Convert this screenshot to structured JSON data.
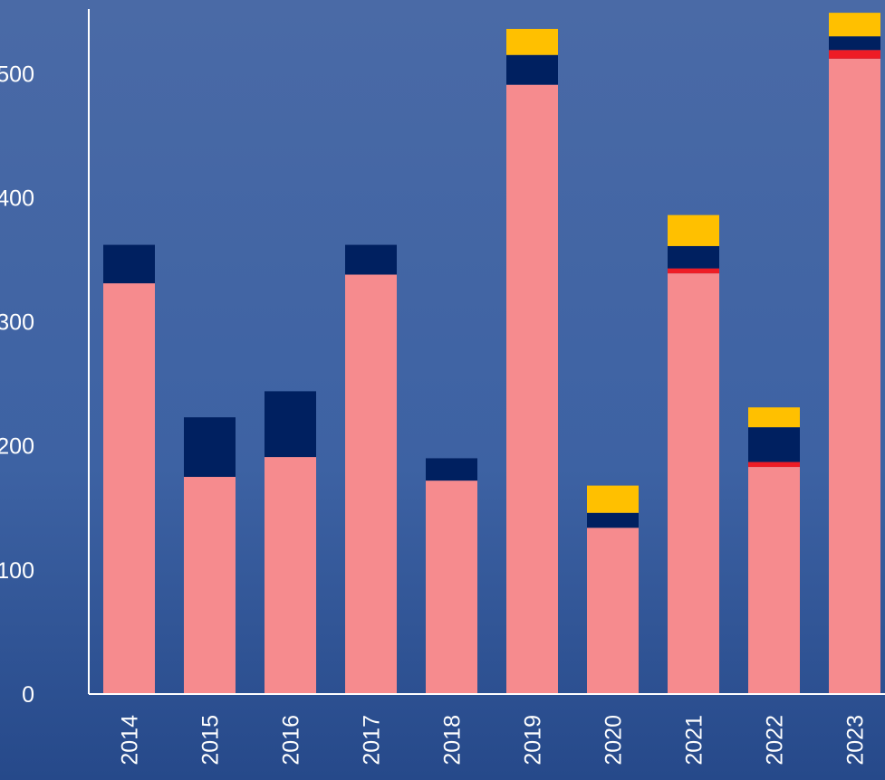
{
  "chart_data": {
    "type": "stacked_bar",
    "categories": [
      "2014",
      "2015",
      "2016",
      "2017",
      "2018",
      "2019",
      "2020",
      "2021",
      "2022",
      "2023"
    ],
    "series": [
      {
        "color": "#f68b8e",
        "values": [
          331,
          175,
          191,
          338,
          172,
          491,
          134,
          339,
          183,
          512
        ]
      },
      {
        "color": "#ee1c25",
        "values": [
          0,
          0,
          0,
          0,
          0,
          0,
          0,
          4,
          4,
          7
        ]
      },
      {
        "color": "#002060",
        "values": [
          31,
          48,
          53,
          24,
          18,
          24,
          12,
          18,
          28,
          11
        ]
      },
      {
        "color": "#ffc000",
        "values": [
          0,
          0,
          0,
          0,
          0,
          21,
          22,
          25,
          16,
          19
        ]
      }
    ],
    "ylim": [
      0,
      552
    ],
    "yticks": [
      0,
      100,
      200,
      300,
      400,
      500
    ],
    "grid": false
  }
}
